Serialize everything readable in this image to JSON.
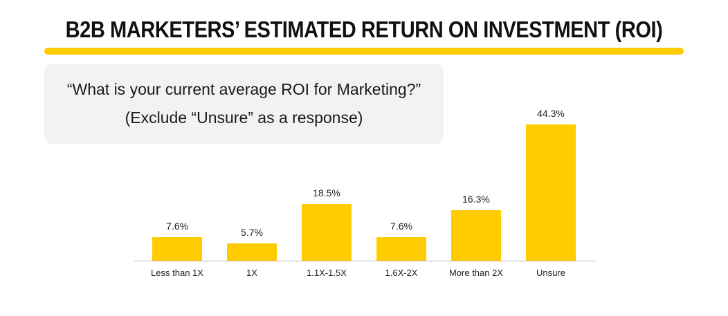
{
  "header": {
    "title": "B2B MARKETERS’ ESTIMATED RETURN ON INVESTMENT (ROI)",
    "accent_color": "#FFCC00"
  },
  "question": {
    "line1": "“What is your current average ROI for Marketing?”",
    "line2": "(Exclude “Unsure” as a response)"
  },
  "chart_data": {
    "type": "bar",
    "title": "B2B MARKETERS’ ESTIMATED RETURN ON INVESTMENT (ROI)",
    "subtitle": "“What is your current average ROI for Marketing?” (Exclude “Unsure” as a response)",
    "categories": [
      "Less than 1X",
      "1X",
      "1.1X-1.5X",
      "1.6X-2X",
      "More than 2X",
      "Unsure"
    ],
    "values": [
      7.6,
      5.7,
      18.5,
      7.6,
      16.3,
      44.3
    ],
    "value_labels": [
      "7.6%",
      "5.7%",
      "18.5%",
      "7.6%",
      "16.3%",
      "44.3%"
    ],
    "xlabel": "",
    "ylabel": "",
    "unit": "%",
    "grid": false,
    "legend": null,
    "bar_color": "#FFCC00"
  }
}
